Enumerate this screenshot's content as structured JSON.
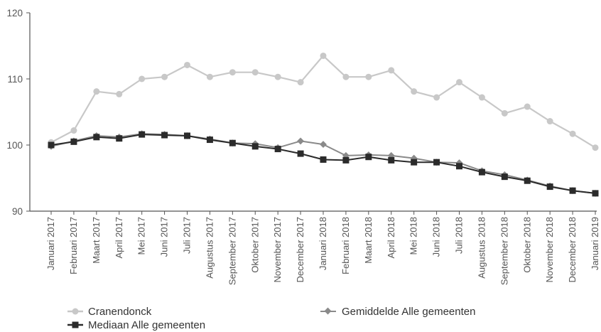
{
  "chart_data": {
    "type": "line",
    "categories": [
      "Januari 2017",
      "Februari 2017",
      "Maart 2017",
      "April 2017",
      "Mei 2017",
      "Juni 2017",
      "Juli 2017",
      "Augustus 2017",
      "September 2017",
      "Oktober 2017",
      "November 2017",
      "December 2017",
      "Januari 2018",
      "Februari 2018",
      "Maart 2018",
      "April 2018",
      "Mei 2018",
      "Juni 2018",
      "Juli 2018",
      "Augustus 2018",
      "September 2018",
      "Oktober 2018",
      "November 2018",
      "December 2018",
      "Januari 2019"
    ],
    "series": [
      {
        "name": "Cranendonck",
        "color": "#c8c8c8",
        "marker": "circle",
        "values": [
          100.4,
          102.2,
          108.1,
          107.7,
          110.0,
          110.3,
          112.1,
          110.3,
          111.0,
          111.0,
          110.3,
          109.5,
          113.5,
          110.3,
          110.3,
          111.3,
          108.1,
          107.2,
          109.5,
          107.2,
          104.8,
          105.8,
          103.6,
          101.7,
          99.6
        ]
      },
      {
        "name": "Gemiddelde Alle gemeenten",
        "color": "#8a8a8a",
        "marker": "diamond",
        "values": [
          99.8,
          100.6,
          101.4,
          101.2,
          101.7,
          101.6,
          101.4,
          100.9,
          100.3,
          100.2,
          99.6,
          100.6,
          100.1,
          98.4,
          98.5,
          98.4,
          98.0,
          97.4,
          97.3,
          96.1,
          95.5,
          94.7,
          93.8,
          93.1,
          92.7
        ]
      },
      {
        "name": "Mediaan Alle gemeenten",
        "color": "#2b2b2b",
        "marker": "square",
        "values": [
          100.0,
          100.5,
          101.2,
          101.0,
          101.6,
          101.5,
          101.4,
          100.8,
          100.3,
          99.8,
          99.4,
          98.7,
          97.8,
          97.7,
          98.2,
          97.7,
          97.4,
          97.4,
          96.8,
          95.9,
          95.2,
          94.6,
          93.7,
          93.1,
          92.7
        ]
      }
    ],
    "ylim": [
      90,
      120
    ],
    "yticks": [
      90,
      100,
      110,
      120
    ],
    "grid": false,
    "legend_position": "bottom"
  }
}
